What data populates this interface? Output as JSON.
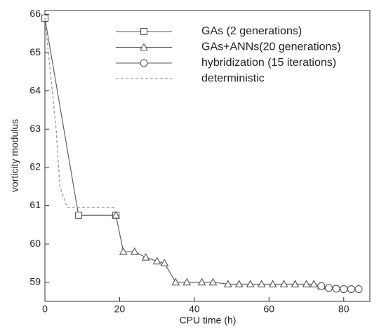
{
  "chart_data": {
    "type": "line",
    "x_label": "CPU time (h)",
    "y_label": "vorticity modulus",
    "xlim": [
      0,
      87
    ],
    "ylim": [
      58.5,
      66.1
    ],
    "xticks": [
      0,
      20,
      40,
      60,
      80
    ],
    "yticks": [
      59,
      60,
      61,
      62,
      63,
      64,
      65,
      66
    ],
    "legend": "upper right",
    "series": [
      {
        "name": "GAs (2 generations)",
        "color": "#555555",
        "marker": "square",
        "dash": false,
        "x": [
          0,
          9,
          19
        ],
        "values": [
          65.9,
          60.75,
          60.75
        ]
      },
      {
        "name": "GAs+ANNs(20 generations)",
        "color": "#555555",
        "marker": "triangle",
        "dash": false,
        "x": [
          19,
          21,
          24,
          27,
          30,
          32,
          35,
          38,
          42,
          45,
          49,
          52,
          55,
          58,
          61,
          64,
          67,
          70,
          72,
          74
        ],
        "values": [
          60.75,
          59.8,
          59.8,
          59.65,
          59.55,
          59.5,
          59.0,
          59.0,
          59.0,
          59.0,
          58.95,
          58.95,
          58.95,
          58.95,
          58.95,
          58.95,
          58.95,
          58.95,
          58.95,
          58.9
        ]
      },
      {
        "name": "hybridization (15 iterations)",
        "color": "#555555",
        "marker": "circle",
        "dash": false,
        "x": [
          74,
          76,
          78,
          80,
          82,
          84
        ],
        "values": [
          58.9,
          58.85,
          58.83,
          58.82,
          58.82,
          58.82
        ]
      },
      {
        "name": "deterministic",
        "color": "#888888",
        "marker": "none",
        "dash": true,
        "x": [
          0,
          3,
          4,
          6,
          19
        ],
        "values": [
          65.9,
          63,
          61.5,
          60.95,
          60.95
        ]
      }
    ]
  }
}
